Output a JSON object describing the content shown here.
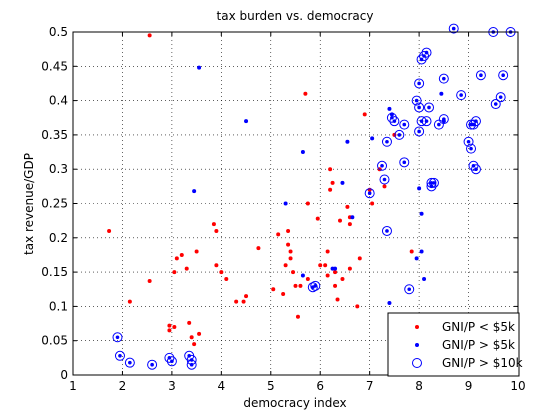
{
  "chart_data": {
    "type": "scatter",
    "title": "tax burden vs. democracy",
    "xlabel": "democracy index",
    "ylabel": "tax revenue/GDP",
    "xlim": [
      1,
      10
    ],
    "ylim": [
      0,
      0.5
    ],
    "xticks": [
      1,
      2,
      3,
      4,
      5,
      6,
      7,
      8,
      9,
      10
    ],
    "yticks": [
      0,
      0.05,
      0.1,
      0.15,
      0.2,
      0.25,
      0.3,
      0.35,
      0.4,
      0.45,
      0.5
    ],
    "xtick_labels": [
      "1",
      "2",
      "3",
      "4",
      "5",
      "6",
      "7",
      "8",
      "9",
      "10"
    ],
    "ytick_labels": [
      "0",
      "0.05",
      "0.1",
      "0.15",
      "0.2",
      "0.25",
      "0.3",
      "0.35",
      "0.4",
      "0.45",
      "0.5"
    ],
    "grid": true,
    "legend_position": "bottom-right",
    "series": [
      {
        "name": "GNI/P < $5k",
        "color": "#ff0000",
        "marker": "dot",
        "points": [
          [
            2.55,
            0.495
          ],
          [
            5.7,
            0.41
          ],
          [
            6.9,
            0.38
          ],
          [
            1.73,
            0.21
          ],
          [
            2.15,
            0.107
          ],
          [
            2.55,
            0.137
          ],
          [
            2.95,
            0.065
          ],
          [
            2.95,
            0.072
          ],
          [
            3.05,
            0.07
          ],
          [
            3.05,
            0.15
          ],
          [
            3.1,
            0.17
          ],
          [
            3.2,
            0.175
          ],
          [
            3.3,
            0.155
          ],
          [
            3.35,
            0.076
          ],
          [
            3.4,
            0.055
          ],
          [
            3.45,
            0.045
          ],
          [
            3.5,
            0.18
          ],
          [
            3.55,
            0.06
          ],
          [
            3.85,
            0.22
          ],
          [
            3.9,
            0.16
          ],
          [
            3.9,
            0.21
          ],
          [
            4.0,
            0.15
          ],
          [
            4.1,
            0.14
          ],
          [
            4.3,
            0.107
          ],
          [
            4.45,
            0.107
          ],
          [
            4.5,
            0.115
          ],
          [
            4.75,
            0.185
          ],
          [
            5.05,
            0.125
          ],
          [
            5.15,
            0.205
          ],
          [
            5.25,
            0.118
          ],
          [
            5.3,
            0.16
          ],
          [
            5.35,
            0.21
          ],
          [
            5.35,
            0.19
          ],
          [
            5.4,
            0.17
          ],
          [
            5.4,
            0.18
          ],
          [
            5.45,
            0.15
          ],
          [
            5.5,
            0.13
          ],
          [
            5.55,
            0.085
          ],
          [
            5.6,
            0.13
          ],
          [
            5.75,
            0.14
          ],
          [
            5.75,
            0.25
          ],
          [
            5.95,
            0.228
          ],
          [
            6.0,
            0.16
          ],
          [
            6.1,
            0.16
          ],
          [
            6.15,
            0.18
          ],
          [
            6.15,
            0.145
          ],
          [
            6.2,
            0.3
          ],
          [
            6.2,
            0.27
          ],
          [
            6.25,
            0.28
          ],
          [
            6.3,
            0.15
          ],
          [
            6.3,
            0.13
          ],
          [
            6.35,
            0.11
          ],
          [
            6.4,
            0.225
          ],
          [
            6.45,
            0.14
          ],
          [
            6.55,
            0.245
          ],
          [
            6.6,
            0.23
          ],
          [
            6.6,
            0.22
          ],
          [
            6.6,
            0.155
          ],
          [
            6.75,
            0.1
          ],
          [
            6.8,
            0.17
          ],
          [
            7.0,
            0.27
          ],
          [
            7.05,
            0.25
          ],
          [
            7.2,
            0.3
          ],
          [
            7.3,
            0.275
          ],
          [
            7.5,
            0.35
          ],
          [
            7.85,
            0.18
          ]
        ]
      },
      {
        "name": "GNI/P > $5k",
        "color": "#0000ff",
        "marker": "dot",
        "points": [
          [
            3.55,
            0.448
          ],
          [
            4.5,
            0.37
          ],
          [
            3.45,
            0.268
          ],
          [
            5.65,
            0.325
          ],
          [
            5.3,
            0.25
          ],
          [
            5.65,
            0.145
          ],
          [
            6.25,
            0.155
          ],
          [
            6.3,
            0.155
          ],
          [
            6.45,
            0.28
          ],
          [
            6.55,
            0.34
          ],
          [
            6.65,
            0.23
          ],
          [
            7.05,
            0.345
          ],
          [
            7.4,
            0.388
          ],
          [
            7.45,
            0.38
          ],
          [
            7.4,
            0.105
          ],
          [
            7.95,
            0.17
          ],
          [
            8.05,
            0.18
          ],
          [
            8.05,
            0.235
          ],
          [
            8.1,
            0.14
          ],
          [
            8.0,
            0.272
          ],
          [
            8.45,
            0.41
          ],
          [
            8.5,
            0.37
          ]
        ]
      },
      {
        "name": "GNI/P > $10k",
        "color": "#0000ff",
        "marker": "circle",
        "points": [
          [
            1.9,
            0.055
          ],
          [
            1.95,
            0.028
          ],
          [
            2.15,
            0.018
          ],
          [
            2.6,
            0.015
          ],
          [
            2.95,
            0.025
          ],
          [
            3.0,
            0.02
          ],
          [
            3.35,
            0.028
          ],
          [
            3.4,
            0.015
          ],
          [
            3.4,
            0.022
          ],
          [
            5.85,
            0.128
          ],
          [
            5.9,
            0.13
          ],
          [
            7.0,
            0.265
          ],
          [
            7.25,
            0.305
          ],
          [
            7.3,
            0.285
          ],
          [
            7.35,
            0.34
          ],
          [
            7.35,
            0.21
          ],
          [
            7.45,
            0.375
          ],
          [
            7.5,
            0.37
          ],
          [
            7.6,
            0.35
          ],
          [
            7.7,
            0.365
          ],
          [
            7.7,
            0.31
          ],
          [
            7.8,
            0.125
          ],
          [
            7.95,
            0.4
          ],
          [
            8.0,
            0.425
          ],
          [
            8.0,
            0.39
          ],
          [
            8.0,
            0.355
          ],
          [
            8.05,
            0.46
          ],
          [
            8.05,
            0.37
          ],
          [
            8.1,
            0.465
          ],
          [
            8.15,
            0.47
          ],
          [
            8.15,
            0.37
          ],
          [
            8.2,
            0.39
          ],
          [
            8.25,
            0.28
          ],
          [
            8.25,
            0.275
          ],
          [
            8.3,
            0.28
          ],
          [
            8.4,
            0.365
          ],
          [
            8.5,
            0.432
          ],
          [
            8.5,
            0.373
          ],
          [
            8.7,
            0.505
          ],
          [
            8.85,
            0.408
          ],
          [
            9.0,
            0.34
          ],
          [
            9.05,
            0.33
          ],
          [
            9.05,
            0.365
          ],
          [
            9.1,
            0.365
          ],
          [
            9.1,
            0.305
          ],
          [
            9.15,
            0.3
          ],
          [
            9.15,
            0.37
          ],
          [
            9.25,
            0.437
          ],
          [
            9.5,
            0.5
          ],
          [
            9.55,
            0.395
          ],
          [
            9.65,
            0.405
          ],
          [
            9.7,
            0.437
          ],
          [
            9.85,
            0.5
          ]
        ]
      }
    ]
  }
}
